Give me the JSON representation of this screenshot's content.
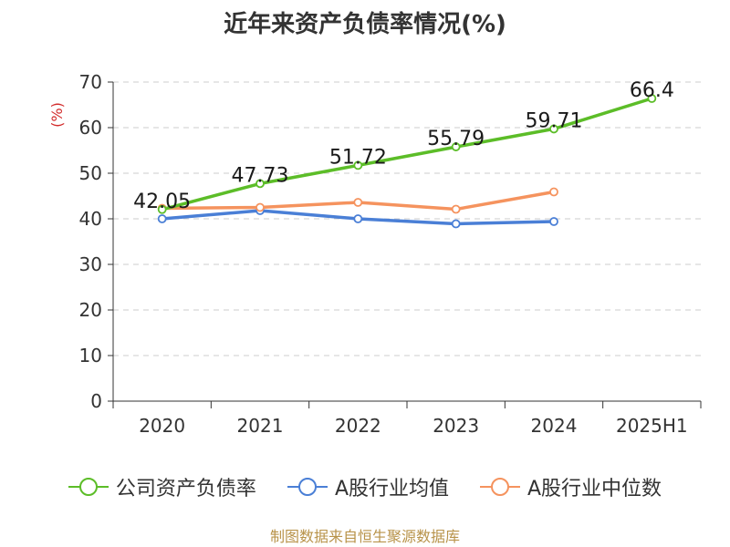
{
  "chart_data": {
    "type": "line",
    "title": "近年来资产负债率情况(%)",
    "ylabel": "(%)",
    "xlabel": "",
    "categories": [
      "2020",
      "2021",
      "2022",
      "2023",
      "2024",
      "2025H1"
    ],
    "ylim": [
      0,
      70
    ],
    "yticks": [
      0,
      10,
      20,
      30,
      40,
      50,
      60,
      70
    ],
    "grid": "horizontal-dashed",
    "legend_position": "bottom",
    "series": [
      {
        "name": "公司资产负债率",
        "color": "#5cbd28",
        "values": [
          42.05,
          47.73,
          51.72,
          55.79,
          59.71,
          66.4
        ],
        "data_labels": [
          "42.05",
          "47.73",
          "51.72",
          "55.79",
          "59.71",
          "66.4"
        ]
      },
      {
        "name": "A股行业均值",
        "color": "#4a7fd6",
        "values": [
          40.0,
          41.8,
          40.0,
          38.9,
          39.4,
          null
        ]
      },
      {
        "name": "A股行业中位数",
        "color": "#f5935e",
        "values": [
          42.3,
          42.5,
          43.6,
          42.1,
          45.9,
          null
        ]
      }
    ]
  },
  "source": "制图数据来自恒生聚源数据库"
}
